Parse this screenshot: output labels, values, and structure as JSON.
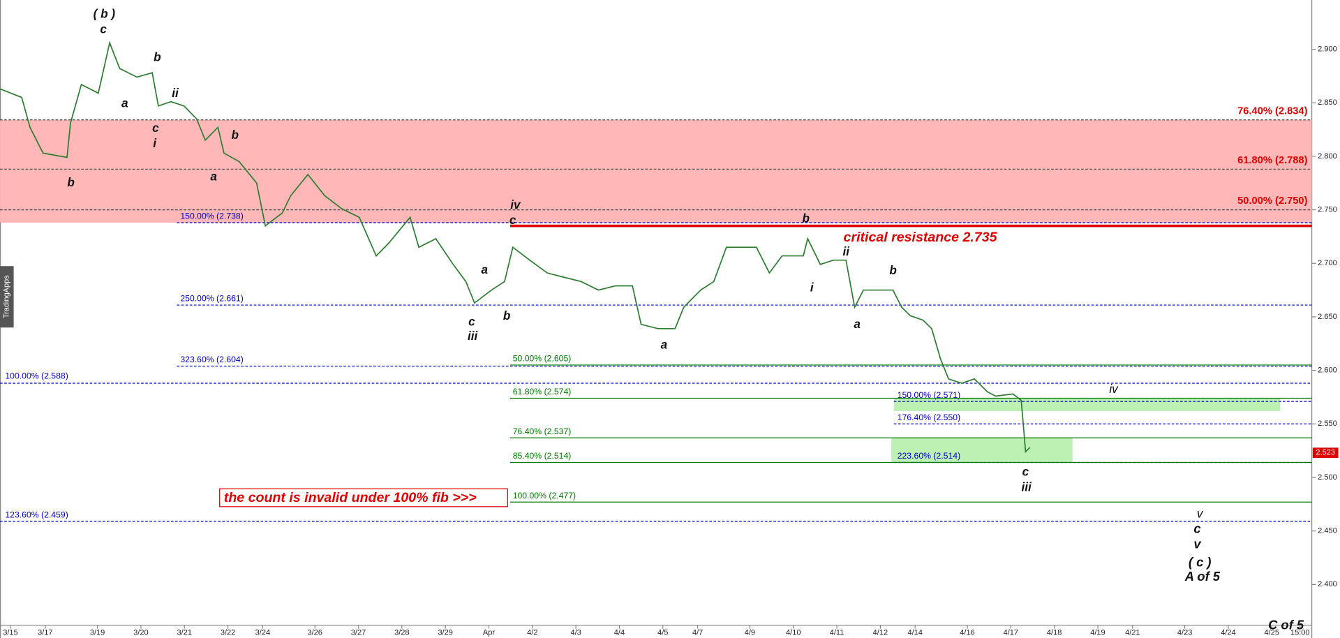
{
  "chart_data": {
    "type": "line",
    "color": "#2e7d32",
    "x": [
      -0.24,
      0.26,
      0.45,
      0.75,
      1.3,
      1.38,
      1.63,
      2.02,
      2.28,
      2.51,
      2.91,
      3.26,
      3.4,
      3.69,
      3.99,
      4.28,
      4.48,
      4.77,
      4.91,
      5.26,
      5.66,
      5.86,
      6.25,
      6.44,
      6.84,
      7.23,
      7.62,
      8.02,
      8.41,
      8.7,
      9.19,
      9.39,
      9.78,
      10.18,
      10.47,
      10.67,
      11.06,
      11.36,
      11.55,
      11.94,
      12.34,
      12.73,
      13.12,
      13.52,
      13.91,
      14.3,
      14.5,
      14.89,
      15.28,
      15.48,
      15.87,
      16.17,
      16.46,
      16.86,
      17.15,
      17.45,
      17.74,
      18.23,
      18.33,
      18.62,
      18.92,
      19.21,
      19.41,
      19.61,
      20,
      20.29,
      20.49,
      20.69,
      20.98,
      21.18,
      21.38,
      21.57,
      21.87,
      22.16,
      22.46,
      22.65,
      23.05,
      23.24,
      23.34,
      23.44
    ],
    "values": [
      2.863,
      2.855,
      2.827,
      2.803,
      2.799,
      2.831,
      2.867,
      2.859,
      2.906,
      2.882,
      2.874,
      2.878,
      2.847,
      2.851,
      2.847,
      2.835,
      2.815,
      2.827,
      2.803,
      2.795,
      2.775,
      2.735,
      2.747,
      2.763,
      2.783,
      2.763,
      2.751,
      2.743,
      2.707,
      2.719,
      2.743,
      2.715,
      2.723,
      2.699,
      2.683,
      2.663,
      2.675,
      2.683,
      2.715,
      2.703,
      2.691,
      2.687,
      2.683,
      2.675,
      2.679,
      2.679,
      2.643,
      2.639,
      2.639,
      2.659,
      2.675,
      2.683,
      2.715,
      2.715,
      2.715,
      2.691,
      2.707,
      2.707,
      2.723,
      2.699,
      2.703,
      2.703,
      2.659,
      2.675,
      2.675,
      2.675,
      2.659,
      2.651,
      2.647,
      2.639,
      2.611,
      2.592,
      2.588,
      2.592,
      2.58,
      2.576,
      2.578,
      2.572,
      2.524,
      2.528
    ],
    "xlim": [
      -0.24,
      29.92
    ],
    "ylim": [
      2.35,
      2.946
    ],
    "xticks": [
      {
        "value": 0,
        "label": "3/15"
      },
      {
        "value": 0.8,
        "label": "3/17"
      },
      {
        "value": 2,
        "label": "3/19"
      },
      {
        "value": 3,
        "label": "3/20"
      },
      {
        "value": 4,
        "label": "3/21"
      },
      {
        "value": 5,
        "label": "3/22"
      },
      {
        "value": 5.8,
        "label": "3/24"
      },
      {
        "value": 7,
        "label": "3/26"
      },
      {
        "value": 8,
        "label": "3/27"
      },
      {
        "value": 9,
        "label": "3/28"
      },
      {
        "value": 10,
        "label": "3/29"
      },
      {
        "value": 11,
        "label": "Apr"
      },
      {
        "value": 12,
        "label": "4/2"
      },
      {
        "value": 13,
        "label": "4/3"
      },
      {
        "value": 14,
        "label": "4/4"
      },
      {
        "value": 15,
        "label": "4/5"
      },
      {
        "value": 15.8,
        "label": "4/7"
      },
      {
        "value": 17,
        "label": "4/9"
      },
      {
        "value": 18,
        "label": "4/10"
      },
      {
        "value": 19,
        "label": "4/11"
      },
      {
        "value": 20,
        "label": "4/12"
      },
      {
        "value": 20.8,
        "label": "4/14"
      },
      {
        "value": 22,
        "label": "4/16"
      },
      {
        "value": 23,
        "label": "4/17"
      },
      {
        "value": 24,
        "label": "4/18"
      },
      {
        "value": 25,
        "label": "4/19"
      },
      {
        "value": 25.8,
        "label": "4/21"
      },
      {
        "value": 27,
        "label": "4/23"
      },
      {
        "value": 28,
        "label": "4/24"
      },
      {
        "value": 29,
        "label": "4/25"
      },
      {
        "value": 29.65,
        "label": "15:00"
      }
    ],
    "yticks": [
      {
        "value": 2.4,
        "label": "2.400"
      },
      {
        "value": 2.45,
        "label": "2.450"
      },
      {
        "value": 2.5,
        "label": "2.500"
      },
      {
        "value": 2.55,
        "label": "2.550"
      },
      {
        "value": 2.6,
        "label": "2.600"
      },
      {
        "value": 2.65,
        "label": "2.650"
      },
      {
        "value": 2.7,
        "label": "2.700"
      },
      {
        "value": 2.75,
        "label": "2.750"
      },
      {
        "value": 2.8,
        "label": "2.800"
      },
      {
        "value": 2.85,
        "label": "2.850"
      },
      {
        "value": 2.9,
        "label": "2.900"
      }
    ],
    "zones": [
      {
        "values": [
          2.834,
          2.738
        ],
        "color": "#ffb3b3"
      },
      {
        "values": [
          2.574,
          2.562
        ],
        "color": "#b9f0b0"
      },
      {
        "values": [
          2.537,
          2.514
        ],
        "color": "#b9f0b0"
      }
    ],
    "fib_levels": [
      {
        "label": "76.40% (2.834)",
        "value": 2.834,
        "color": "#e00000"
      },
      {
        "label": "61.80% (2.788)",
        "value": 2.788,
        "color": "#e00000"
      },
      {
        "label": "50.00% (2.750)",
        "value": 2.75,
        "color": "#e00000"
      },
      {
        "label": "150.00% (2.738)",
        "value": 2.738,
        "color": "#0000cc"
      },
      {
        "label": "250.00% (2.661)",
        "value": 2.661,
        "color": "#0000cc"
      },
      {
        "label": "323.60% (2.604)",
        "value": 2.604,
        "color": "#0000cc"
      },
      {
        "label": "100.00% (2.588)",
        "value": 2.588,
        "color": "#0000cc"
      },
      {
        "label": "123.60% (2.459)",
        "value": 2.459,
        "color": "#0000cc"
      },
      {
        "label": "150.00% (2.571)",
        "value": 2.571,
        "color": "#0000cc"
      },
      {
        "label": "176.40% (2.550)",
        "value": 2.55,
        "color": "#0000cc"
      },
      {
        "label": "223.60% (2.514)",
        "value": 2.514,
        "color": "#0000cc"
      },
      {
        "label": "50.00% (2.605)",
        "value": 2.605,
        "color": "#007a00"
      },
      {
        "label": "61.80% (2.574)",
        "value": 2.574,
        "color": "#007a00"
      },
      {
        "label": "76.40% (2.537)",
        "value": 2.537,
        "color": "#007a00"
      },
      {
        "label": "85.40% (2.514)",
        "value": 2.514,
        "color": "#007a00"
      },
      {
        "label": "100.00% (2.477)",
        "value": 2.477,
        "color": "#007a00"
      }
    ],
    "resistance": {
      "label": "critical resistance 2.735",
      "value": 2.735,
      "color": "#e00000"
    },
    "note": "the count is invalid under 100% fib  >>>",
    "last_price": {
      "label": "2.523",
      "value": 2.523,
      "color": "#e00000"
    },
    "watermark": "TradingApps",
    "footer": "C of 5",
    "annotations": [
      "( b )",
      "c",
      "b",
      "ii",
      "a",
      "c",
      "i",
      "b",
      "a",
      "b",
      "iv",
      "c",
      "b",
      "ii",
      "i",
      "a",
      "c",
      "iii",
      "b",
      "a",
      "b",
      "a",
      "iv",
      "c",
      "iii",
      "v",
      "c",
      "v",
      "( c )",
      "A of 5"
    ]
  }
}
